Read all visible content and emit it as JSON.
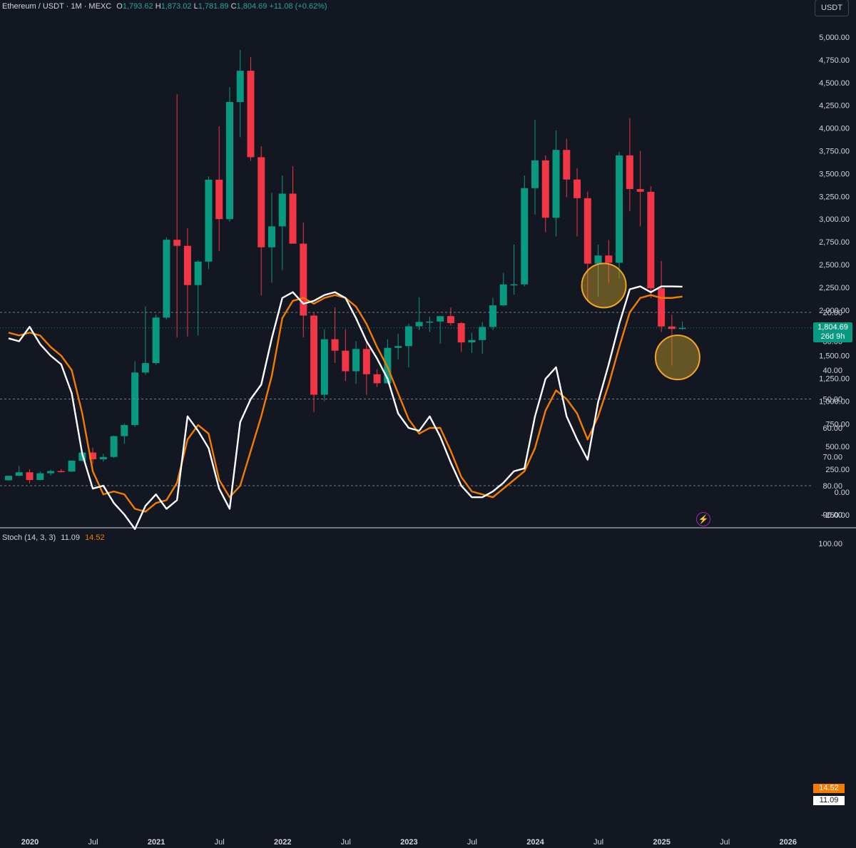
{
  "header": {
    "symbol": "Ethereum / USDT · 1M · MEXC",
    "o_label": "O",
    "o_val": "1,793.62",
    "h_label": "H",
    "h_val": "1,873.02",
    "l_label": "L",
    "l_val": "1,781.89",
    "c_label": "C",
    "c_val": "1,804.69",
    "change": "+11.08 (+0.62%)"
  },
  "currency_button": "USDT",
  "price_tag": {
    "price": "1,804.69",
    "countdown": "26d 9h"
  },
  "stoch": {
    "title": "Stoch (14, 3, 3)",
    "k_val": "11.09",
    "d_val": "14.52"
  },
  "colors": {
    "up": "#089981",
    "down": "#f23645",
    "k_line": "#ffffff",
    "d_line": "#f57c00",
    "band": "#162438",
    "highlight": "#c9a227"
  },
  "icons": {
    "flash": "lightning-icon"
  },
  "chart_data": [
    {
      "type": "candlestick",
      "ylim": [
        -250,
        5000
      ],
      "y_ticks": [
        "5,000.00",
        "4,750.00",
        "4,500.00",
        "4,250.00",
        "4,000.00",
        "3,750.00",
        "3,500.00",
        "3,250.00",
        "3,000.00",
        "2,750.00",
        "2,500.00",
        "2,250.00",
        "2,000.00",
        "1,750.00",
        "1,500.00",
        "1,250.00",
        "1,000.00",
        "750.00",
        "500.00",
        "250.00",
        "0.00",
        "−250.00"
      ],
      "y_tick_values": [
        5000,
        4750,
        4500,
        4250,
        4000,
        3750,
        3500,
        3250,
        3000,
        2750,
        2500,
        2250,
        2000,
        1750,
        1500,
        1250,
        1000,
        750,
        500,
        250,
        0,
        -250
      ],
      "x_labels": [
        "2020",
        "Jul",
        "2021",
        "Jul",
        "2022",
        "Jul",
        "2023",
        "Jul",
        "2024",
        "Jul",
        "2025",
        "Jul",
        "2026"
      ],
      "x_label_dates": [
        "2020-01",
        "2020-07",
        "2021-01",
        "2021-07",
        "2022-01",
        "2022-07",
        "2023-01",
        "2023-07",
        "2024-01",
        "2024-07",
        "2025-01",
        "2025-07",
        "2026-01"
      ],
      "candles": [
        {
          "d": "2020-01",
          "o": 130,
          "h": 180,
          "l": 125,
          "c": 179
        },
        {
          "d": "2020-02",
          "o": 179,
          "h": 285,
          "l": 175,
          "c": 218
        },
        {
          "d": "2020-03",
          "o": 218,
          "h": 250,
          "l": 95,
          "c": 133
        },
        {
          "d": "2020-04",
          "o": 133,
          "h": 228,
          "l": 130,
          "c": 207
        },
        {
          "d": "2020-05",
          "o": 207,
          "h": 247,
          "l": 182,
          "c": 231
        },
        {
          "d": "2020-06",
          "o": 231,
          "h": 254,
          "l": 215,
          "c": 226
        },
        {
          "d": "2020-07",
          "o": 226,
          "h": 350,
          "l": 220,
          "c": 345
        },
        {
          "d": "2020-08",
          "o": 345,
          "h": 445,
          "l": 335,
          "c": 435
        },
        {
          "d": "2020-09",
          "o": 435,
          "h": 490,
          "l": 310,
          "c": 360
        },
        {
          "d": "2020-10",
          "o": 360,
          "h": 420,
          "l": 335,
          "c": 386
        },
        {
          "d": "2020-11",
          "o": 386,
          "h": 620,
          "l": 375,
          "c": 615
        },
        {
          "d": "2020-12",
          "o": 615,
          "h": 755,
          "l": 530,
          "c": 737
        },
        {
          "d": "2021-01",
          "o": 737,
          "h": 1440,
          "l": 715,
          "c": 1314
        },
        {
          "d": "2021-02",
          "o": 1314,
          "h": 2040,
          "l": 1290,
          "c": 1418
        },
        {
          "d": "2021-03",
          "o": 1418,
          "h": 1950,
          "l": 1400,
          "c": 1918
        },
        {
          "d": "2021-04",
          "o": 1918,
          "h": 2800,
          "l": 1900,
          "c": 2773
        },
        {
          "d": "2021-05",
          "o": 2773,
          "h": 4370,
          "l": 1700,
          "c": 2706
        },
        {
          "d": "2021-06",
          "o": 2706,
          "h": 2900,
          "l": 1710,
          "c": 2275
        },
        {
          "d": "2021-07",
          "o": 2275,
          "h": 2550,
          "l": 1720,
          "c": 2533
        },
        {
          "d": "2021-08",
          "o": 2533,
          "h": 3470,
          "l": 2450,
          "c": 3433
        },
        {
          "d": "2021-09",
          "o": 3433,
          "h": 4020,
          "l": 2650,
          "c": 3000
        },
        {
          "d": "2021-10",
          "o": 3000,
          "h": 4450,
          "l": 2970,
          "c": 4287
        },
        {
          "d": "2021-11",
          "o": 4287,
          "h": 4860,
          "l": 3900,
          "c": 4630
        },
        {
          "d": "2021-12",
          "o": 4630,
          "h": 4780,
          "l": 3640,
          "c": 3680
        },
        {
          "d": "2022-01",
          "o": 3680,
          "h": 3800,
          "l": 2160,
          "c": 2690
        },
        {
          "d": "2022-02",
          "o": 2690,
          "h": 3290,
          "l": 2300,
          "c": 2920
        },
        {
          "d": "2022-03",
          "o": 2920,
          "h": 3480,
          "l": 2440,
          "c": 3280
        },
        {
          "d": "2022-04",
          "o": 3280,
          "h": 3580,
          "l": 2780,
          "c": 2730
        },
        {
          "d": "2022-05",
          "o": 2730,
          "h": 2960,
          "l": 1700,
          "c": 1940
        },
        {
          "d": "2022-06",
          "o": 1940,
          "h": 1970,
          "l": 880,
          "c": 1070
        },
        {
          "d": "2022-07",
          "o": 1070,
          "h": 1790,
          "l": 1000,
          "c": 1680
        },
        {
          "d": "2022-08",
          "o": 1680,
          "h": 2030,
          "l": 1420,
          "c": 1554
        },
        {
          "d": "2022-09",
          "o": 1554,
          "h": 1790,
          "l": 1220,
          "c": 1328
        },
        {
          "d": "2022-10",
          "o": 1328,
          "h": 1660,
          "l": 1190,
          "c": 1573
        },
        {
          "d": "2022-11",
          "o": 1573,
          "h": 1670,
          "l": 1070,
          "c": 1295
        },
        {
          "d": "2022-12",
          "o": 1295,
          "h": 1350,
          "l": 1155,
          "c": 1196
        },
        {
          "d": "2023-01",
          "o": 1196,
          "h": 1680,
          "l": 1190,
          "c": 1585
        },
        {
          "d": "2023-02",
          "o": 1585,
          "h": 1740,
          "l": 1460,
          "c": 1605
        },
        {
          "d": "2023-03",
          "o": 1605,
          "h": 1850,
          "l": 1370,
          "c": 1822
        },
        {
          "d": "2023-04",
          "o": 1822,
          "h": 2140,
          "l": 1780,
          "c": 1870
        },
        {
          "d": "2023-05",
          "o": 1870,
          "h": 1930,
          "l": 1760,
          "c": 1874
        },
        {
          "d": "2023-06",
          "o": 1874,
          "h": 1930,
          "l": 1630,
          "c": 1934
        },
        {
          "d": "2023-07",
          "o": 1934,
          "h": 2030,
          "l": 1830,
          "c": 1857
        },
        {
          "d": "2023-08",
          "o": 1857,
          "h": 1870,
          "l": 1540,
          "c": 1645
        },
        {
          "d": "2023-09",
          "o": 1645,
          "h": 1750,
          "l": 1530,
          "c": 1671
        },
        {
          "d": "2023-10",
          "o": 1671,
          "h": 1870,
          "l": 1520,
          "c": 1815
        },
        {
          "d": "2023-11",
          "o": 1815,
          "h": 2135,
          "l": 1780,
          "c": 2052
        },
        {
          "d": "2023-12",
          "o": 2052,
          "h": 2410,
          "l": 2040,
          "c": 2282
        },
        {
          "d": "2024-01",
          "o": 2282,
          "h": 2720,
          "l": 2170,
          "c": 2283
        },
        {
          "d": "2024-02",
          "o": 2283,
          "h": 3480,
          "l": 2260,
          "c": 3340
        },
        {
          "d": "2024-03",
          "o": 3340,
          "h": 4090,
          "l": 3050,
          "c": 3645
        },
        {
          "d": "2024-04",
          "o": 3645,
          "h": 3700,
          "l": 2855,
          "c": 3015
        },
        {
          "d": "2024-05",
          "o": 3015,
          "h": 3975,
          "l": 2810,
          "c": 3760
        },
        {
          "d": "2024-06",
          "o": 3760,
          "h": 3885,
          "l": 3240,
          "c": 3435
        },
        {
          "d": "2024-07",
          "o": 3435,
          "h": 3560,
          "l": 2810,
          "c": 3230
        },
        {
          "d": "2024-08",
          "o": 3230,
          "h": 3300,
          "l": 2110,
          "c": 2510
        },
        {
          "d": "2024-09",
          "o": 2510,
          "h": 2720,
          "l": 2150,
          "c": 2600
        },
        {
          "d": "2024-10",
          "o": 2600,
          "h": 2770,
          "l": 2300,
          "c": 2520
        },
        {
          "d": "2024-11",
          "o": 2520,
          "h": 3740,
          "l": 2350,
          "c": 3700
        },
        {
          "d": "2024-12",
          "o": 3700,
          "h": 4110,
          "l": 3090,
          "c": 3330
        },
        {
          "d": "2025-01",
          "o": 3330,
          "h": 3750,
          "l": 2920,
          "c": 3300
        },
        {
          "d": "2025-02",
          "o": 3300,
          "h": 3360,
          "l": 2130,
          "c": 2240
        },
        {
          "d": "2025-03",
          "o": 2240,
          "h": 2540,
          "l": 1760,
          "c": 1820
        },
        {
          "d": "2025-04",
          "o": 1820,
          "h": 1950,
          "l": 1390,
          "c": 1793
        },
        {
          "d": "2025-05",
          "o": 1793.62,
          "h": 1873.02,
          "l": 1781.89,
          "c": 1804.69
        }
      ],
      "last_price": 1804.69,
      "annotations": [
        {
          "type": "circle",
          "d": "2024-09",
          "y": 2270,
          "label": ""
        },
        {
          "type": "circle",
          "d": "2025-04",
          "y": 1480,
          "label": ""
        }
      ]
    },
    {
      "type": "line",
      "title": "Stoch (14, 3, 3)",
      "ylim": [
        5,
        100
      ],
      "y_ticks": [
        "100.00",
        "90.00",
        "80.00",
        "70.00",
        "60.00",
        "50.00",
        "40.00",
        "30.00",
        "20.00"
      ],
      "y_tick_values": [
        100,
        90,
        80,
        70,
        60,
        50,
        40,
        30,
        20
      ],
      "band": [
        20,
        80
      ],
      "x": [
        "2020-01",
        "2020-02",
        "2020-03",
        "2020-04",
        "2020-05",
        "2020-06",
        "2020-07",
        "2020-08",
        "2020-09",
        "2020-10",
        "2020-11",
        "2020-12",
        "2021-01",
        "2021-02",
        "2021-03",
        "2021-04",
        "2021-05",
        "2021-06",
        "2021-07",
        "2021-08",
        "2021-09",
        "2021-10",
        "2021-11",
        "2021-12",
        "2022-01",
        "2022-02",
        "2022-03",
        "2022-04",
        "2022-05",
        "2022-06",
        "2022-07",
        "2022-08",
        "2022-09",
        "2022-10",
        "2022-11",
        "2022-12",
        "2023-01",
        "2023-02",
        "2023-03",
        "2023-04",
        "2023-05",
        "2023-06",
        "2023-07",
        "2023-08",
        "2023-09",
        "2023-10",
        "2023-11",
        "2023-12",
        "2024-01",
        "2024-02",
        "2024-03",
        "2024-04",
        "2024-05",
        "2024-06",
        "2024-07",
        "2024-08",
        "2024-09",
        "2024-10",
        "2024-11",
        "2024-12",
        "2025-01",
        "2025-02",
        "2025-03",
        "2025-04",
        "2025-05"
      ],
      "series": [
        {
          "name": "",
          "color": "#ffffff",
          "values": [
            29,
            30,
            25,
            31,
            35,
            38,
            48,
            69,
            81,
            80,
            86,
            90,
            95,
            87,
            83,
            88,
            85,
            56,
            61,
            67,
            81,
            88,
            58,
            50,
            45,
            29,
            15,
            13,
            17,
            16,
            14,
            13,
            15,
            22,
            30,
            36,
            43,
            55,
            60,
            61,
            56,
            63,
            72,
            80,
            84,
            84,
            82,
            79,
            75,
            74,
            56,
            43,
            39,
            56,
            64,
            71,
            51,
            38,
            24,
            12,
            11,
            13,
            11,
            11,
            11.09
          ]
        },
        {
          "name": "",
          "color": "#f57c00",
          "values": [
            27,
            28,
            27,
            28,
            32,
            35,
            40,
            55,
            75,
            83,
            82,
            83,
            88,
            89,
            86,
            85,
            79,
            64,
            59,
            62,
            78,
            84,
            80,
            68,
            56,
            42,
            22,
            16,
            15,
            17,
            15,
            14,
            15,
            18,
            24,
            32,
            39,
            48,
            57,
            62,
            60,
            60,
            68,
            77,
            82,
            83,
            84,
            81,
            78,
            75,
            67,
            54,
            47,
            50,
            55,
            64,
            56,
            45,
            32,
            20,
            15,
            14,
            15,
            15,
            14.52
          ]
        }
      ],
      "k_last": 11.09,
      "d_last": 14.52
    }
  ]
}
